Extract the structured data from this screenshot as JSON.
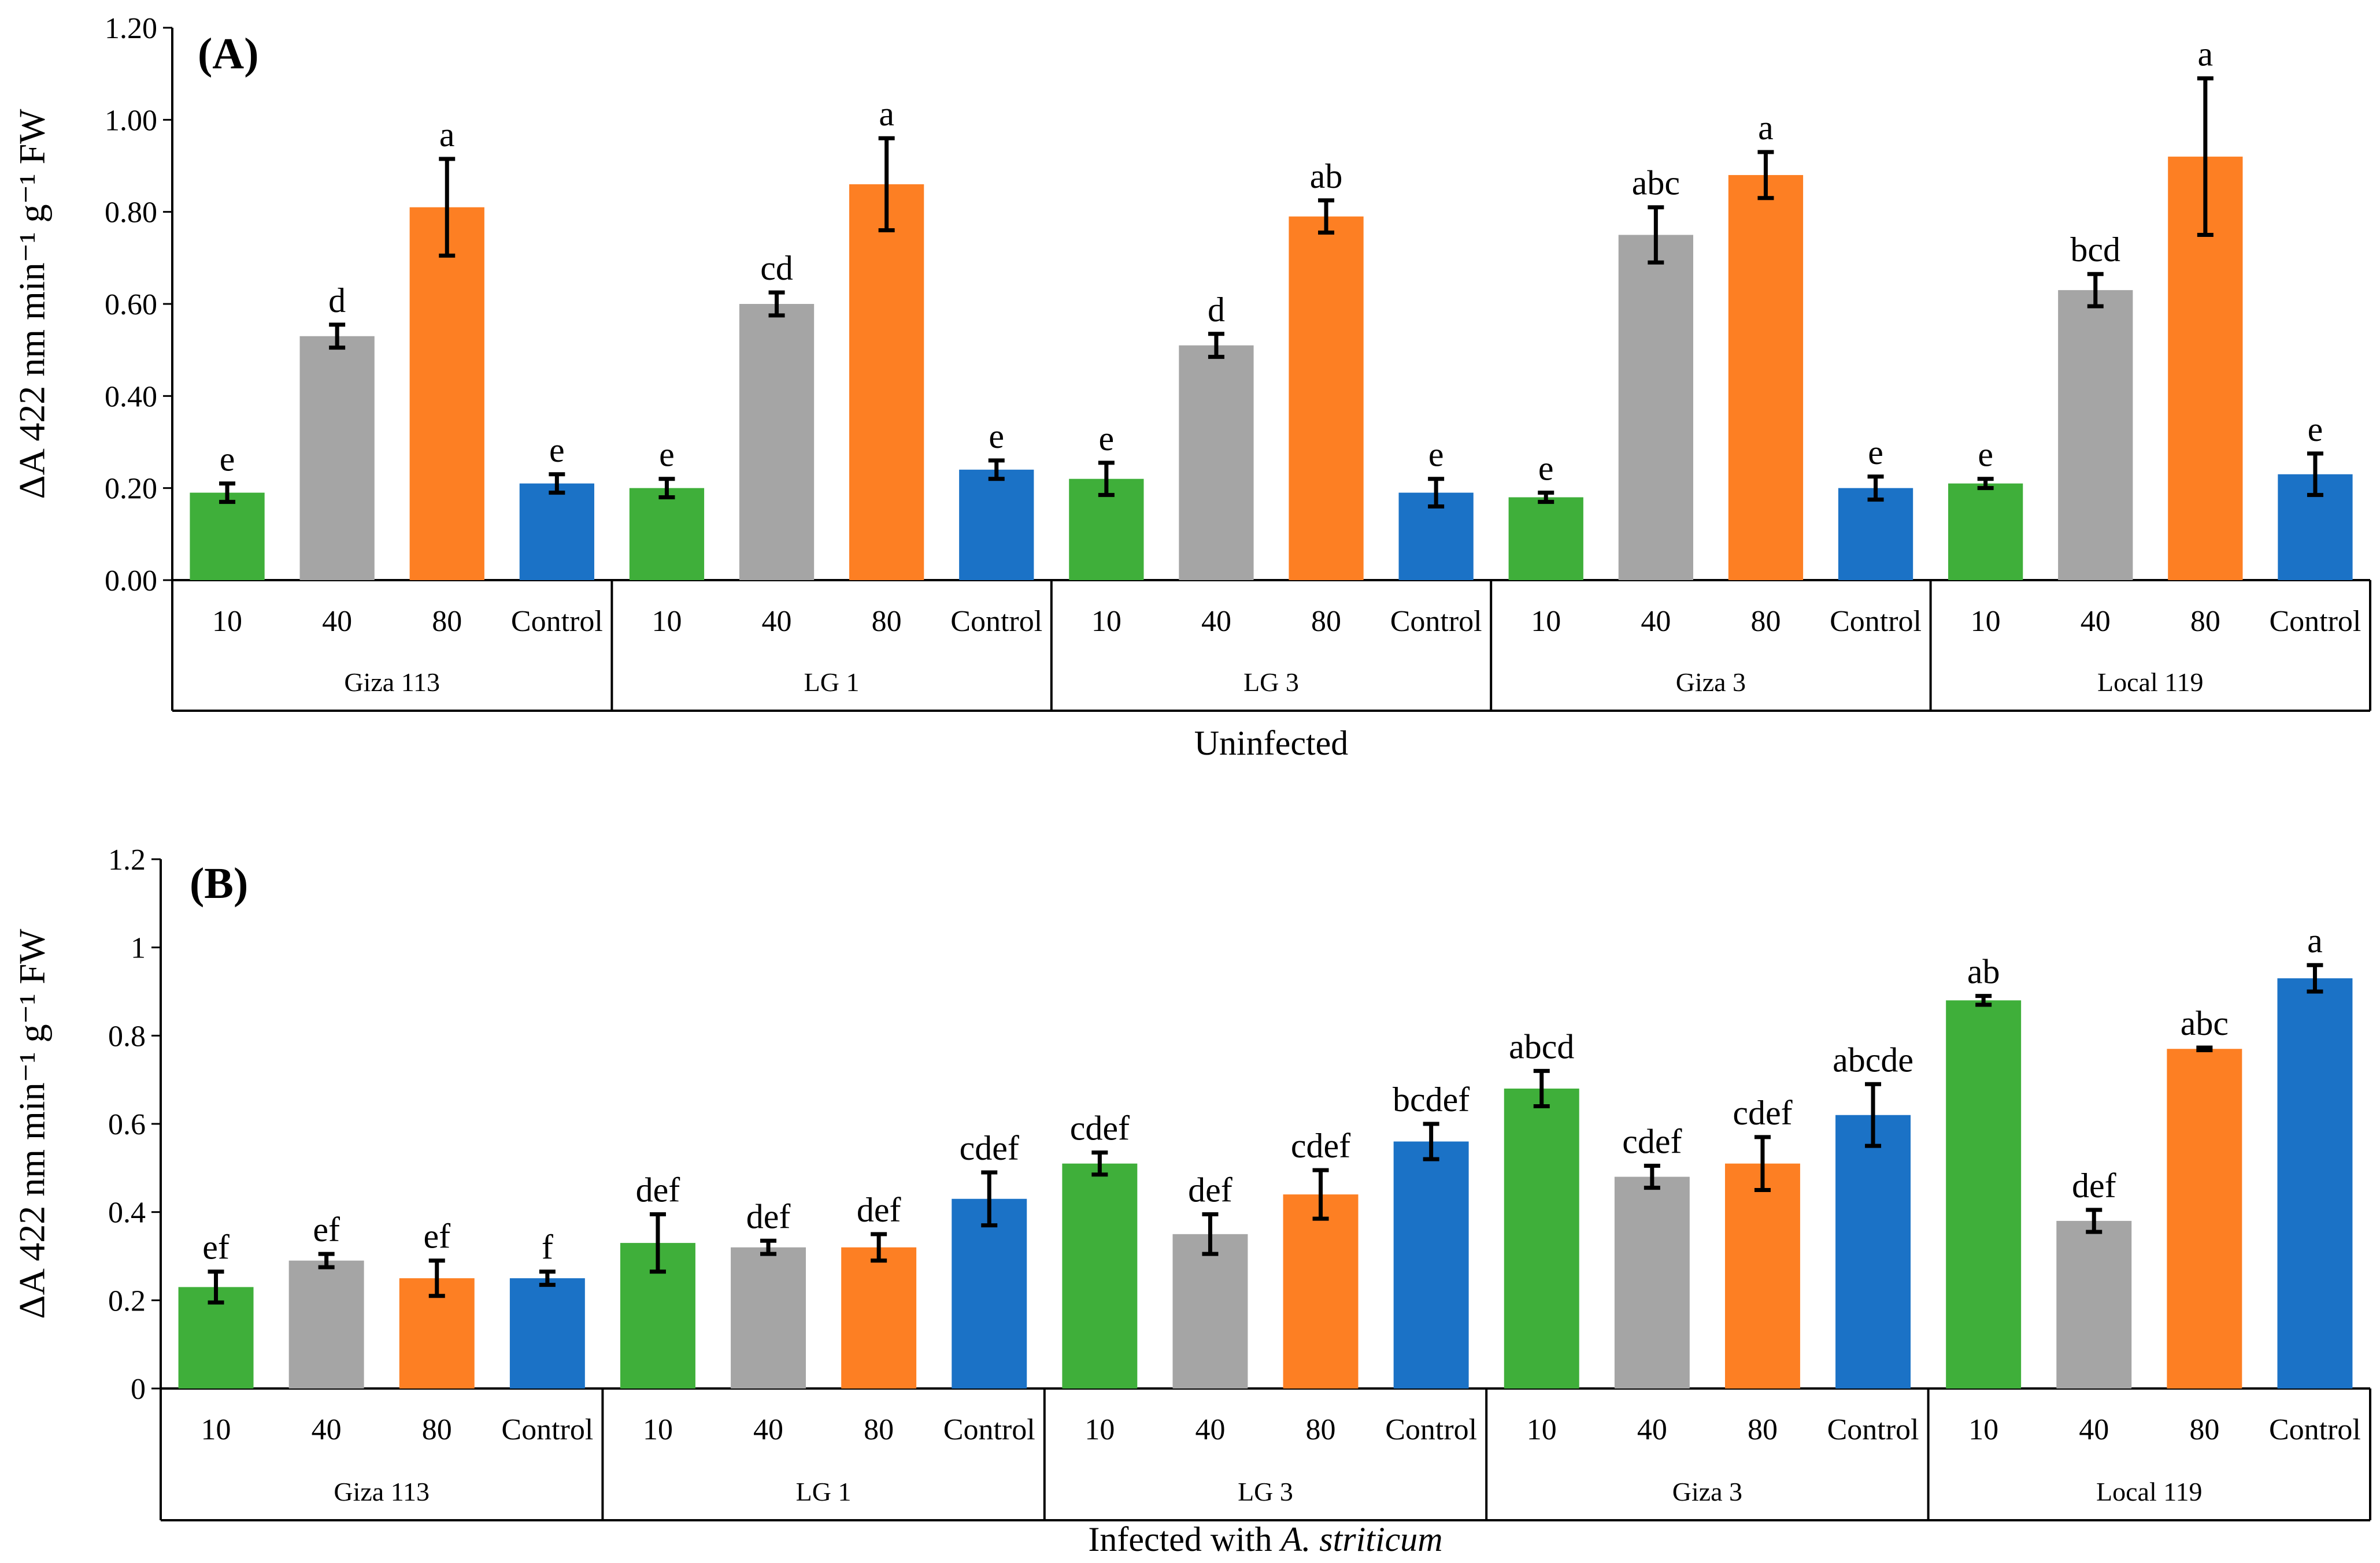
{
  "chart_data": [
    {
      "type": "bar",
      "panel_label": "(A)",
      "title": "",
      "ylabel": "ΔA 422 nm min⁻¹ g⁻¹ FW",
      "xlabel": "Uninfected",
      "ylim": [
        0,
        1.2
      ],
      "yticks": [
        "0.00",
        "0.20",
        "0.40",
        "0.60",
        "0.80",
        "1.00",
        "1.20"
      ],
      "groups": [
        "Giza 113",
        "LG 1",
        "LG 3",
        "Giza 3",
        "Local 119"
      ],
      "categories": [
        "10",
        "40",
        "80",
        "Control"
      ],
      "colors": [
        "#3faf3a",
        "#a5a5a5",
        "#fd7f23",
        "#1b72c6"
      ],
      "values": [
        [
          0.19,
          0.53,
          0.81,
          0.21
        ],
        [
          0.2,
          0.6,
          0.86,
          0.24
        ],
        [
          0.22,
          0.51,
          0.79,
          0.19
        ],
        [
          0.18,
          0.75,
          0.88,
          0.2
        ],
        [
          0.21,
          0.63,
          0.92,
          0.23
        ]
      ],
      "errors": [
        [
          0.02,
          0.025,
          0.105,
          0.02
        ],
        [
          0.02,
          0.025,
          0.1,
          0.02
        ],
        [
          0.035,
          0.025,
          0.035,
          0.03
        ],
        [
          0.01,
          0.06,
          0.05,
          0.025
        ],
        [
          0.01,
          0.035,
          0.17,
          0.045
        ]
      ],
      "letters": [
        [
          "e",
          "d",
          "a",
          "e"
        ],
        [
          "e",
          "cd",
          "a",
          "e"
        ],
        [
          "e",
          "d",
          "ab",
          "e"
        ],
        [
          "e",
          "abc",
          "a",
          "e"
        ],
        [
          "e",
          "bcd",
          "a",
          "e"
        ]
      ]
    },
    {
      "type": "bar",
      "panel_label": "(B)",
      "title": "",
      "ylabel": "ΔA 422 nm min⁻¹ g⁻¹ FW",
      "xlabel": "Infected with A. striticum",
      "xlabel_plain": "Infected with ",
      "xlabel_italic": "A. striticum",
      "ylim": [
        0,
        1.2
      ],
      "yticks": [
        "0",
        "0.2",
        "0.4",
        "0.6",
        "0.8",
        "1",
        "1.2"
      ],
      "groups": [
        "Giza 113",
        "LG 1",
        "LG 3",
        "Giza 3",
        "Local 119"
      ],
      "categories": [
        "10",
        "40",
        "80",
        "Control"
      ],
      "colors": [
        "#3faf3a",
        "#a5a5a5",
        "#fd7f23",
        "#1b72c6"
      ],
      "values": [
        [
          0.23,
          0.29,
          0.25,
          0.25
        ],
        [
          0.33,
          0.32,
          0.32,
          0.43
        ],
        [
          0.51,
          0.35,
          0.44,
          0.56
        ],
        [
          0.68,
          0.48,
          0.51,
          0.62
        ],
        [
          0.88,
          0.38,
          0.77,
          0.93
        ]
      ],
      "errors": [
        [
          0.035,
          0.015,
          0.04,
          0.015
        ],
        [
          0.065,
          0.015,
          0.03,
          0.06
        ],
        [
          0.025,
          0.045,
          0.055,
          0.04
        ],
        [
          0.04,
          0.025,
          0.06,
          0.07
        ],
        [
          0.01,
          0.025,
          0.003,
          0.03
        ]
      ],
      "letters": [
        [
          "ef",
          "ef",
          "ef",
          "f"
        ],
        [
          "def",
          "def",
          "def",
          "cdef"
        ],
        [
          "cdef",
          "def",
          "cdef",
          "bcdef"
        ],
        [
          "abcd",
          "cdef",
          "cdef",
          "abcde"
        ],
        [
          "ab",
          "def",
          "abc",
          "a"
        ]
      ]
    }
  ]
}
